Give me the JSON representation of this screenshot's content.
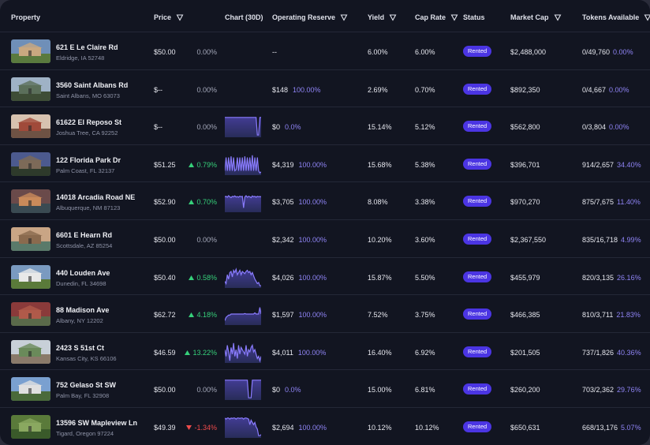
{
  "header": {
    "property": "Property",
    "price": "Price",
    "chart": "Chart (30D)",
    "reserve": "Operating Reserve",
    "yield": "Yield",
    "cap_rate": "Cap Rate",
    "status": "Status",
    "market_cap": "Market Cap",
    "tokens": "Tokens Available"
  },
  "rows": [
    {
      "name": "621 E Le Claire Rd",
      "address": "Eldridge, IA 52748",
      "price": "$50.00",
      "change": "0.00%",
      "dir": "flat",
      "chart": [],
      "reserve": "--",
      "reserve_pct": "",
      "yield": "6.00%",
      "cap": "6.00%",
      "status": "Rented",
      "mcap": "$2,488,000",
      "tokens": "0/49,760",
      "tokens_pct": "0.00%",
      "thumb": [
        "#6f8fb8",
        "#c9a880",
        "#5a7a3e"
      ]
    },
    {
      "name": "3560 Saint Albans Rd",
      "address": "Saint Albans, MO 63073",
      "price": "$--",
      "change": "0.00%",
      "dir": "flat",
      "chart": [],
      "reserve": "$148",
      "reserve_pct": "100.00%",
      "yield": "2.69%",
      "cap": "0.70%",
      "status": "Rented",
      "mcap": "$892,350",
      "tokens": "0/4,667",
      "tokens_pct": "0.00%",
      "thumb": [
        "#9fb2c6",
        "#5b6f5a",
        "#3e4d36"
      ]
    },
    {
      "name": "61622 El Reposo St",
      "address": "Joshua Tree, CA 92252",
      "price": "$--",
      "change": "0.00%",
      "dir": "flat",
      "chart": [
        0.9,
        0.9,
        0.9,
        0.9,
        0.9,
        0.9,
        0.9,
        0.9,
        0.9,
        0.9,
        0.9,
        0.9,
        0.9,
        0.9,
        0.9,
        0.9,
        0.9,
        0.9,
        0.9,
        0.9,
        0.9,
        0.9,
        0.9,
        0.9,
        0.9,
        0.9,
        0.1,
        0.1,
        0.9,
        0.9
      ],
      "reserve": "$0",
      "reserve_pct": "0.0%",
      "yield": "15.14%",
      "cap": "5.12%",
      "status": "Rented",
      "mcap": "$562,800",
      "tokens": "0/3,804",
      "tokens_pct": "0.00%",
      "thumb": [
        "#d7c2b0",
        "#a04a3a",
        "#6e5244"
      ]
    },
    {
      "name": "122 Florida Park Dr",
      "address": "Palm Coast, FL 32137",
      "price": "$51.25",
      "change": "0.79%",
      "dir": "up",
      "chart": [
        0.2,
        0.8,
        0.2,
        0.8,
        0.2,
        0.85,
        0.2,
        0.8,
        0.2,
        0.25,
        0.8,
        0.2,
        0.8,
        0.2,
        0.8,
        0.2,
        0.85,
        0.2,
        0.8,
        0.2,
        0.8,
        0.2,
        0.9,
        0.2,
        0.8,
        0.2,
        0.8,
        0.2,
        0.1,
        0.15
      ],
      "reserve": "$4,319",
      "reserve_pct": "100.00%",
      "yield": "15.68%",
      "cap": "5.38%",
      "status": "Rented",
      "mcap": "$396,701",
      "tokens": "914/2,657",
      "tokens_pct": "34.40%",
      "thumb": [
        "#4c5a8e",
        "#7d6a58",
        "#2e3a2b"
      ]
    },
    {
      "name": "14018 Arcadia Road NE",
      "address": "Albuquerque, NM 87123",
      "price": "$52.90",
      "change": "0.70%",
      "dir": "up",
      "chart": [
        0.7,
        0.72,
        0.68,
        0.75,
        0.7,
        0.66,
        0.72,
        0.7,
        0.74,
        0.69,
        0.71,
        0.68,
        0.73,
        0.7,
        0.72,
        0.2,
        0.69,
        0.75,
        0.68,
        0.72,
        0.7,
        0.66,
        0.74,
        0.7,
        0.72,
        0.68,
        0.72,
        0.7,
        0.71,
        0.7
      ],
      "reserve": "$3,705",
      "reserve_pct": "100.00%",
      "yield": "8.08%",
      "cap": "3.38%",
      "status": "Rented",
      "mcap": "$970,270",
      "tokens": "875/7,675",
      "tokens_pct": "11.40%",
      "thumb": [
        "#6a4a4a",
        "#c98a5a",
        "#3a4a52"
      ]
    },
    {
      "name": "6601 E Hearn Rd",
      "address": "Scottsdale, AZ 85254",
      "price": "$50.00",
      "change": "0.00%",
      "dir": "flat",
      "chart": [],
      "reserve": "$2,342",
      "reserve_pct": "100.00%",
      "yield": "10.20%",
      "cap": "3.60%",
      "status": "Rented",
      "mcap": "$2,367,550",
      "tokens": "835/16,718",
      "tokens_pct": "4.99%",
      "thumb": [
        "#c9a585",
        "#8a6a4e",
        "#5a7a6a"
      ]
    },
    {
      "name": "440 Louden Ave",
      "address": "Dunedin, FL 34698",
      "price": "$50.40",
      "change": "0.58%",
      "dir": "up",
      "chart": [
        0.3,
        0.2,
        0.6,
        0.4,
        0.7,
        0.75,
        0.5,
        0.8,
        0.7,
        0.85,
        0.6,
        0.7,
        0.8,
        0.6,
        0.75,
        0.7,
        0.65,
        0.75,
        0.8,
        0.7,
        0.75,
        0.6,
        0.7,
        0.55,
        0.4,
        0.3,
        0.2,
        0.25,
        0.1,
        0.1
      ],
      "reserve": "$4,026",
      "reserve_pct": "100.00%",
      "yield": "15.87%",
      "cap": "5.50%",
      "status": "Rented",
      "mcap": "$455,979",
      "tokens": "820/3,135",
      "tokens_pct": "26.16%",
      "thumb": [
        "#7a9ac0",
        "#e8e8e8",
        "#5a7a3a"
      ]
    },
    {
      "name": "88 Madison Ave",
      "address": "Albany, NY 12202",
      "price": "$62.72",
      "change": "4.18%",
      "dir": "up",
      "chart": [
        0.2,
        0.35,
        0.4,
        0.45,
        0.45,
        0.5,
        0.5,
        0.5,
        0.5,
        0.5,
        0.5,
        0.5,
        0.5,
        0.5,
        0.5,
        0.5,
        0.52,
        0.5,
        0.5,
        0.5,
        0.5,
        0.5,
        0.5,
        0.5,
        0.55,
        0.5,
        0.5,
        0.5,
        0.8,
        0.5
      ],
      "reserve": "$1,597",
      "reserve_pct": "100.00%",
      "yield": "7.52%",
      "cap": "3.75%",
      "status": "Rented",
      "mcap": "$466,385",
      "tokens": "810/3,711",
      "tokens_pct": "21.83%",
      "thumb": [
        "#8a3a3a",
        "#b05a4a",
        "#5a6a4a"
      ]
    },
    {
      "name": "2423 S 51st Ct",
      "address": "Kansas City, KS 66106",
      "price": "$46.59",
      "change": "13.22%",
      "dir": "up",
      "chart": [
        0.6,
        0.3,
        0.8,
        0.5,
        0.1,
        0.7,
        0.4,
        0.9,
        0.3,
        0.6,
        0.2,
        0.8,
        0.4,
        0.7,
        0.6,
        0.5,
        0.4,
        0.8,
        0.3,
        0.6,
        0.5,
        0.7,
        0.8,
        0.5,
        0.6,
        0.4,
        0.2,
        0.3,
        0.1,
        0.3
      ],
      "reserve": "$4,011",
      "reserve_pct": "100.00%",
      "yield": "16.40%",
      "cap": "6.92%",
      "status": "Rented",
      "mcap": "$201,505",
      "tokens": "737/1,826",
      "tokens_pct": "40.36%",
      "thumb": [
        "#c8d0d8",
        "#6a8a5a",
        "#8a7a6a"
      ]
    },
    {
      "name": "752 Gelaso St SW",
      "address": "Palm Bay, FL 32908",
      "price": "$50.00",
      "change": "0.00%",
      "dir": "flat",
      "chart": [
        0.9,
        0.9,
        0.9,
        0.9,
        0.9,
        0.9,
        0.9,
        0.9,
        0.9,
        0.9,
        0.9,
        0.9,
        0.9,
        0.9,
        0.9,
        0.9,
        0.9,
        0.9,
        0.9,
        0.1,
        0.1,
        0.1,
        0.9,
        0.9,
        0.9,
        0.9,
        0.9,
        0.9,
        0.9,
        0.9
      ],
      "reserve": "$0",
      "reserve_pct": "0.0%",
      "yield": "15.00%",
      "cap": "6.81%",
      "status": "Rented",
      "mcap": "$260,200",
      "tokens": "703/2,362",
      "tokens_pct": "29.76%",
      "thumb": [
        "#7aa0d0",
        "#e0e0e0",
        "#4a6a3a"
      ]
    },
    {
      "name": "13596 SW Mapleview Ln",
      "address": "Tigard, Oregon 97224",
      "price": "$49.39",
      "change": "-1.34%",
      "dir": "down",
      "chart": [
        0.9,
        0.85,
        0.9,
        0.9,
        0.85,
        0.9,
        0.88,
        0.9,
        0.9,
        0.85,
        0.9,
        0.9,
        0.88,
        0.9,
        0.9,
        0.85,
        0.9,
        0.9,
        0.88,
        0.85,
        0.6,
        0.8,
        0.7,
        0.6,
        0.7,
        0.5,
        0.4,
        0.1,
        0.1,
        0.15
      ],
      "reserve": "$2,694",
      "reserve_pct": "100.00%",
      "yield": "10.12%",
      "cap": "10.12%",
      "status": "Rented",
      "mcap": "$650,631",
      "tokens": "668/13,176",
      "tokens_pct": "5.07%",
      "thumb": [
        "#5a7a3a",
        "#8aa860",
        "#3a5a2a"
      ]
    }
  ]
}
